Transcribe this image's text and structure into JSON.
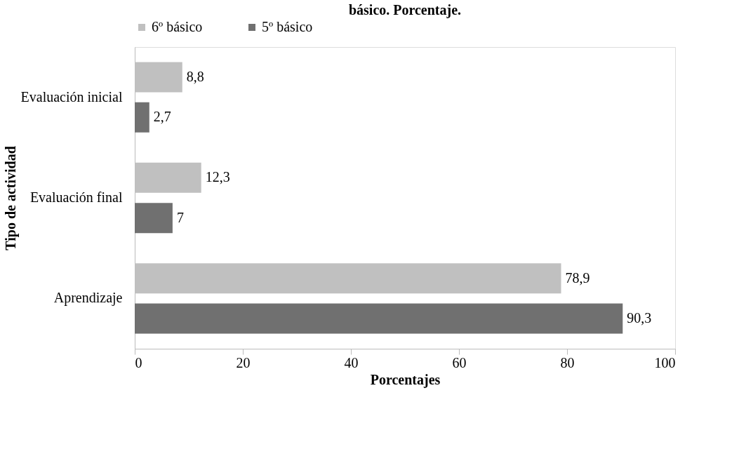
{
  "chart_data": {
    "type": "bar",
    "orientation": "horizontal",
    "title": "básico. Porcentaje.",
    "xlabel": "Porcentajes",
    "ylabel": "Tipo de actividad",
    "categories": [
      "Evaluación inicial",
      "Evaluación final",
      "Aprendizaje"
    ],
    "series": [
      {
        "name": "6º básico",
        "color": "#c0c0c0",
        "values": [
          8.8,
          12.3,
          78.9
        ],
        "value_labels": [
          "8,8",
          "12,3",
          "78,9"
        ]
      },
      {
        "name": "5º básico",
        "color": "#707070",
        "values": [
          2.7,
          7,
          90.3
        ],
        "value_labels": [
          "2,7",
          "7",
          "90,3"
        ]
      }
    ],
    "xlim": [
      0,
      100
    ],
    "xticks": [
      0,
      20,
      40,
      60,
      80,
      100
    ],
    "grid": false,
    "legend": "top"
  }
}
